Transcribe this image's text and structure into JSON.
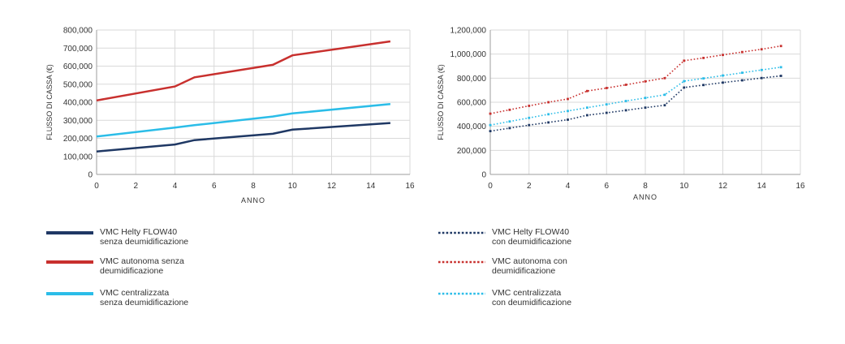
{
  "chart_data": [
    {
      "type": "line",
      "xlabel": "ANNO",
      "ylabel": "FLUSSO DI CASSA (€)",
      "xlim": [
        0,
        16
      ],
      "ylim": [
        0,
        800000
      ],
      "xticks": [
        "0",
        "2",
        "4",
        "6",
        "8",
        "10",
        "12",
        "14",
        "16"
      ],
      "yticks": [
        "0",
        "100,000",
        "200,000",
        "300,000",
        "400,000",
        "500,000",
        "600,000",
        "700,000",
        "800,000"
      ],
      "grid": true,
      "series": [
        {
          "name": "VMC Helty FLOW40\nsenza deumidificazione",
          "color": "#1f3864",
          "style": "solid",
          "x": [
            0,
            4,
            5,
            9,
            10,
            15
          ],
          "y": [
            127000,
            166000,
            190000,
            225000,
            248000,
            285000
          ]
        },
        {
          "name": "VMC autonoma senza\ndeumidificazione",
          "color": "#c8302e",
          "style": "solid",
          "x": [
            0,
            4,
            5,
            9,
            10,
            15
          ],
          "y": [
            410000,
            487000,
            538000,
            607000,
            660000,
            737000
          ]
        },
        {
          "name": "VMC centralizzata\nsenza deumidificazione",
          "color": "#2bbde8",
          "style": "solid",
          "x": [
            0,
            4,
            5,
            9,
            10,
            15
          ],
          "y": [
            210000,
            260000,
            273000,
            321000,
            338000,
            390000
          ]
        }
      ]
    },
    {
      "type": "line",
      "xlabel": "ANNO",
      "ylabel": "FLUSSO DI CASSA (€)",
      "xlim": [
        0,
        16
      ],
      "ylim": [
        0,
        1200000
      ],
      "xticks": [
        "0",
        "2",
        "4",
        "6",
        "8",
        "10",
        "12",
        "14",
        "16"
      ],
      "yticks": [
        "0",
        "200,000",
        "400,000",
        "600,000",
        "800,000",
        "1,000,000",
        "1,200,000"
      ],
      "grid": true,
      "series": [
        {
          "name": "VMC Helty FLOW40\ncon deumidificazione",
          "color": "#1f3864",
          "style": "dotted",
          "x": [
            0,
            1,
            2,
            3,
            4,
            5,
            6,
            7,
            8,
            9,
            10,
            11,
            12,
            13,
            14,
            15
          ],
          "y": [
            360000,
            385000,
            410000,
            432000,
            455000,
            492000,
            512000,
            533000,
            555000,
            575000,
            722000,
            743000,
            763000,
            782000,
            801000,
            819000
          ]
        },
        {
          "name": "VMC autonoma con\ndeumidificazione",
          "color": "#c8302e",
          "style": "dotted",
          "x": [
            0,
            1,
            2,
            3,
            4,
            5,
            6,
            7,
            8,
            9,
            10,
            11,
            12,
            13,
            14,
            15
          ],
          "y": [
            505000,
            537000,
            570000,
            600000,
            627000,
            693000,
            718000,
            745000,
            773000,
            800000,
            945000,
            968000,
            993000,
            1017000,
            1040000,
            1067000
          ]
        },
        {
          "name": "VMC centralizzata\ncon deumidificazione",
          "color": "#2bbde8",
          "style": "dotted",
          "x": [
            0,
            1,
            2,
            3,
            4,
            5,
            6,
            7,
            8,
            9,
            10,
            11,
            12,
            13,
            14,
            15
          ],
          "y": [
            410000,
            440000,
            470000,
            500000,
            527000,
            555000,
            582000,
            610000,
            636000,
            662000,
            775000,
            798000,
            822000,
            845000,
            868000,
            891000
          ]
        }
      ]
    }
  ]
}
